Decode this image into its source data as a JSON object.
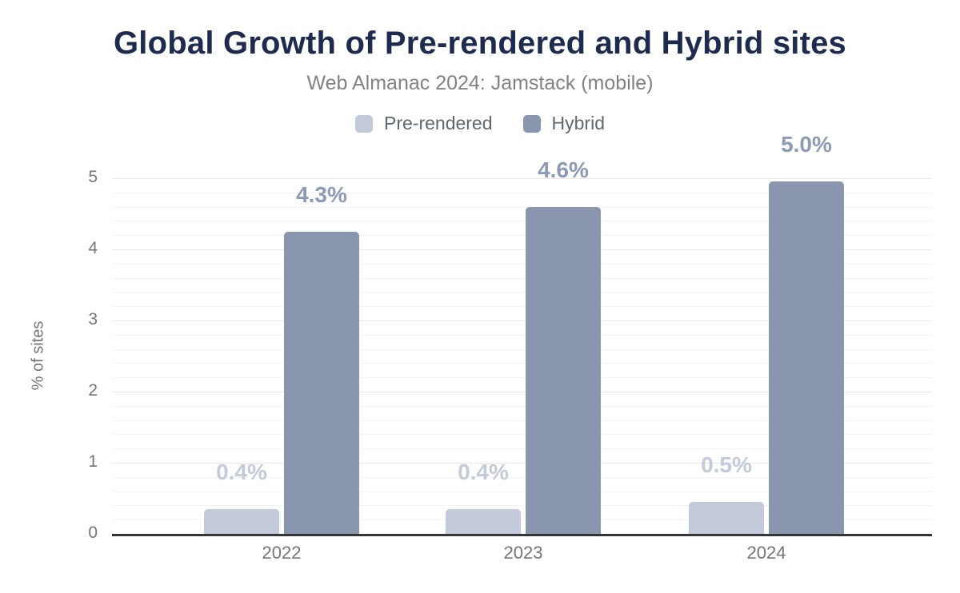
{
  "header": {
    "title": "Global Growth of Pre-rendered and Hybrid sites",
    "subtitle": "Web Almanac 2024: Jamstack (mobile)"
  },
  "colors": {
    "title": "#1d2b4f",
    "subtitle_text": "#828282",
    "axis_text": "#757575",
    "legend_text": "#60676f",
    "axis_line": "#35363a",
    "grid_major": "#e9e9e9",
    "grid_minor": "#f4f4f4"
  },
  "chart_data": {
    "type": "bar",
    "title": "Global Growth of Pre-rendered and Hybrid sites",
    "subtitle": "Web Almanac 2024: Jamstack (mobile)",
    "categories": [
      "2022",
      "2023",
      "2024"
    ],
    "series": [
      {
        "name": "Pre-rendered",
        "color": "#c3cad9",
        "label_color": "#c3cad9",
        "values": [
          0.35,
          0.35,
          0.45
        ],
        "labels": [
          "0.4%",
          "0.4%",
          "0.5%"
        ]
      },
      {
        "name": "Hybrid",
        "color": "#8a96ad",
        "label_color": "#8c9ab5",
        "values": [
          4.25,
          4.6,
          4.95
        ],
        "labels": [
          "4.3%",
          "4.6%",
          "5.0%"
        ]
      }
    ],
    "xlabel": "",
    "ylabel": "% of sites",
    "ylim": [
      0,
      5
    ],
    "yticks": [
      0,
      1,
      2,
      3,
      4,
      5
    ],
    "minor_grid_step": 0.2,
    "grid": "on",
    "legend_position": "top"
  }
}
